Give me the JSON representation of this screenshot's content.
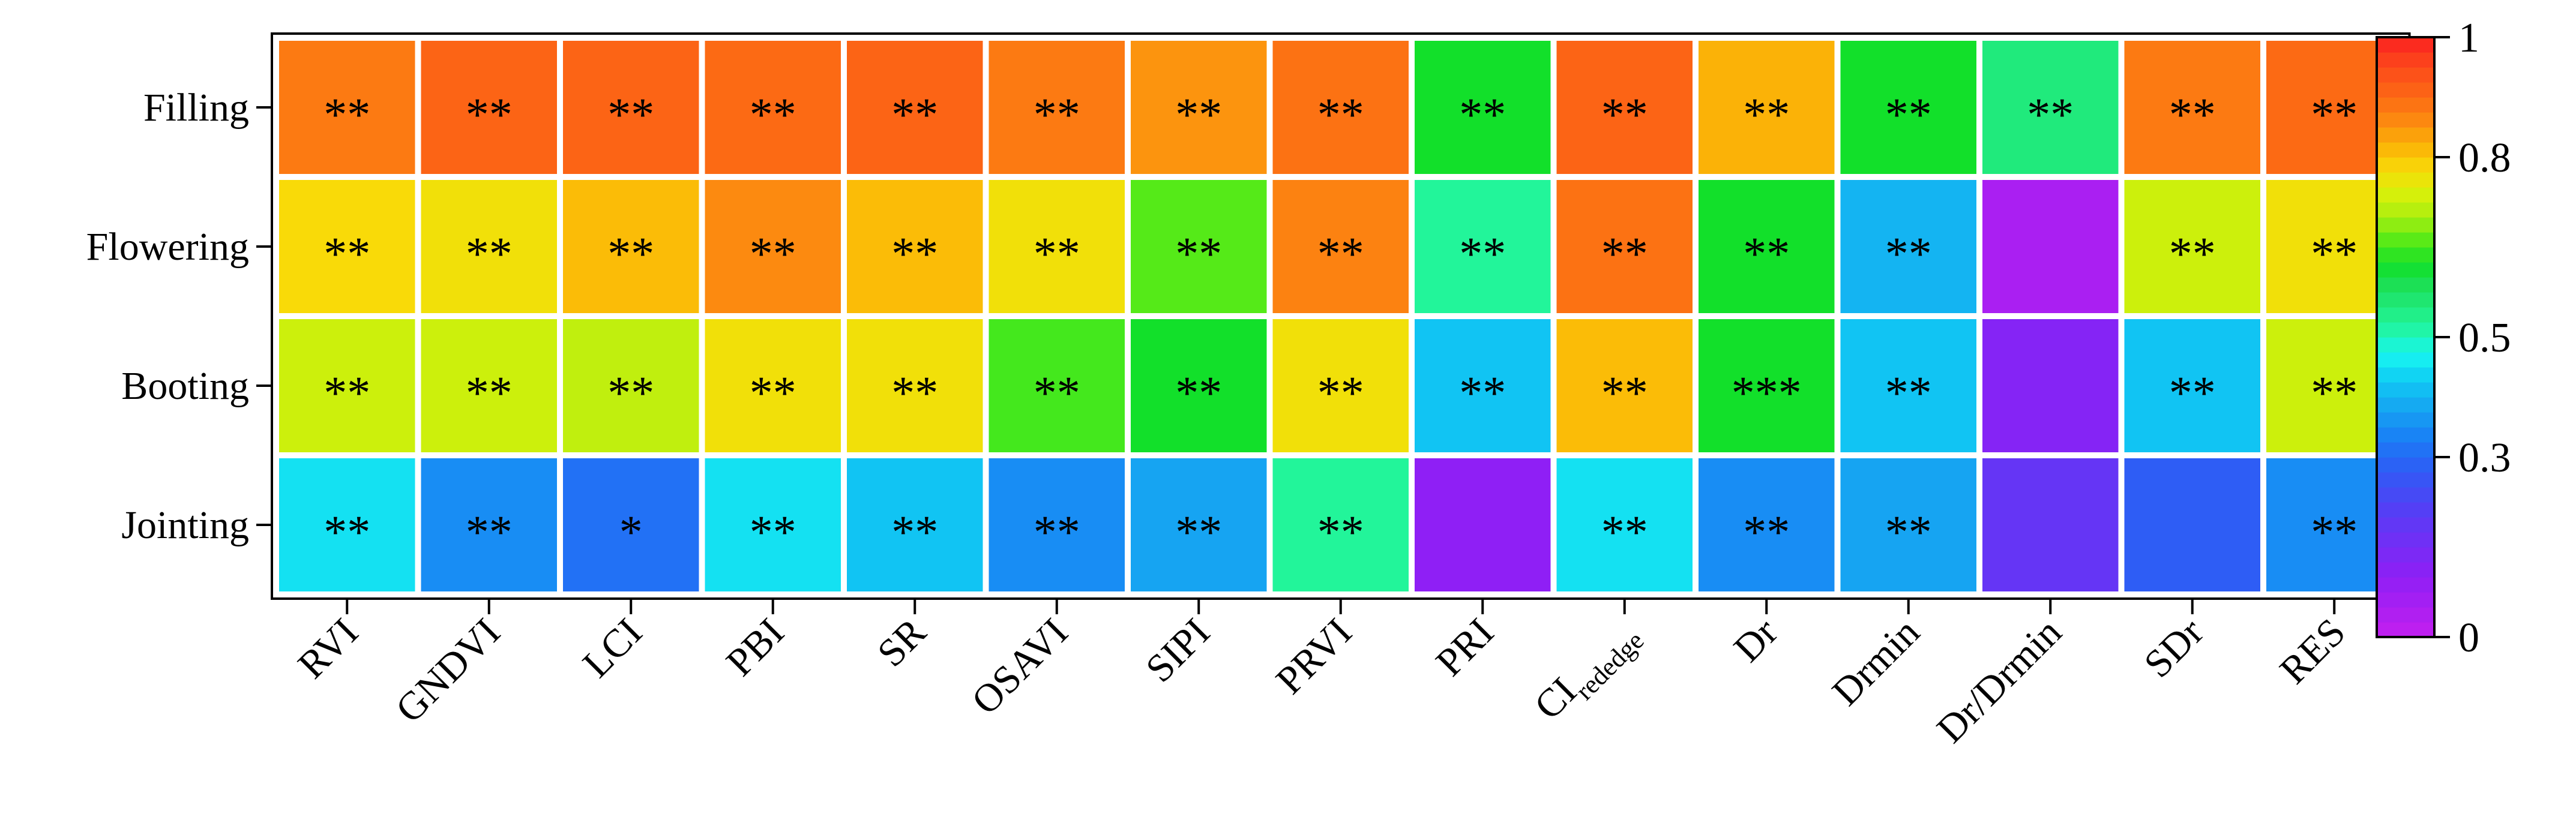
{
  "chart_data": {
    "type": "heatmap",
    "title": "",
    "xlabel": "",
    "ylabel": "",
    "x_categories": [
      "RVI",
      "GNDVI",
      "LCI",
      "PBI",
      "SR",
      "OSAVI",
      "SIPI",
      "PRVI",
      "PRI",
      "CI",
      "Dr",
      "Drmin",
      "Dr/Drmin",
      "SDr",
      "RES"
    ],
    "x_subscripts": [
      "",
      "",
      "",
      "",
      "",
      "",
      "",
      "",
      "",
      "rededge",
      "",
      "",
      "",
      "",
      ""
    ],
    "y_categories": [
      "Filling",
      "Flowering",
      "Booting",
      "Jointing"
    ],
    "values": [
      [
        0.88,
        0.91,
        0.91,
        0.9,
        0.91,
        0.88,
        0.85,
        0.89,
        0.62,
        0.91,
        0.82,
        0.62,
        0.55,
        0.88,
        0.9
      ],
      [
        0.78,
        0.77,
        0.81,
        0.86,
        0.81,
        0.77,
        0.66,
        0.87,
        0.52,
        0.89,
        0.62,
        0.4,
        0.05,
        0.73,
        0.77
      ],
      [
        0.73,
        0.73,
        0.72,
        0.77,
        0.77,
        0.65,
        0.62,
        0.77,
        0.42,
        0.81,
        0.62,
        0.42,
        0.12,
        0.42,
        0.73
      ],
      [
        0.45,
        0.35,
        0.31,
        0.45,
        0.42,
        0.35,
        0.38,
        0.52,
        0.1,
        0.45,
        0.35,
        0.38,
        0.18,
        0.28,
        0.35
      ]
    ],
    "annotations": [
      [
        "**",
        "**",
        "**",
        "**",
        "**",
        "**",
        "**",
        "**",
        "**",
        "**",
        "**",
        "**",
        "**",
        "**",
        "**"
      ],
      [
        "**",
        "**",
        "**",
        "**",
        "**",
        "**",
        "**",
        "**",
        "**",
        "**",
        "**",
        "**",
        "",
        "**",
        "**"
      ],
      [
        "**",
        "**",
        "**",
        "**",
        "**",
        "**",
        "**",
        "**",
        "**",
        "**",
        "***",
        "**",
        "",
        "**",
        "**"
      ],
      [
        "**",
        "**",
        "*",
        "**",
        "**",
        "**",
        "**",
        "**",
        "",
        "**",
        "**",
        "**",
        "",
        "",
        "**"
      ]
    ],
    "colorbar": {
      "range": [
        0,
        1
      ],
      "tick_values": [
        0,
        0.3,
        0.5,
        0.8,
        1
      ],
      "tick_labels": [
        "0",
        "0.3",
        "0.5",
        "0.8",
        "1"
      ]
    },
    "colors": {
      "scale_stops": [
        [
          0.0,
          "#c41fef"
        ],
        [
          0.1,
          "#8f1ff5"
        ],
        [
          0.2,
          "#5b3af5"
        ],
        [
          0.28,
          "#2e5df5"
        ],
        [
          0.33,
          "#1a7ef5"
        ],
        [
          0.38,
          "#16a4f2"
        ],
        [
          0.43,
          "#10ccf3"
        ],
        [
          0.47,
          "#17f5f1"
        ],
        [
          0.52,
          "#22f59a"
        ],
        [
          0.58,
          "#1ee05f"
        ],
        [
          0.62,
          "#12e02a"
        ],
        [
          0.66,
          "#55ea18"
        ],
        [
          0.7,
          "#a8ee10"
        ],
        [
          0.74,
          "#d8f00b"
        ],
        [
          0.78,
          "#f9da08"
        ],
        [
          0.82,
          "#fbb207"
        ],
        [
          0.86,
          "#fc8a10"
        ],
        [
          0.9,
          "#fc6a14"
        ],
        [
          0.95,
          "#fc4a1a"
        ],
        [
          1.0,
          "#fb2121"
        ]
      ]
    }
  }
}
